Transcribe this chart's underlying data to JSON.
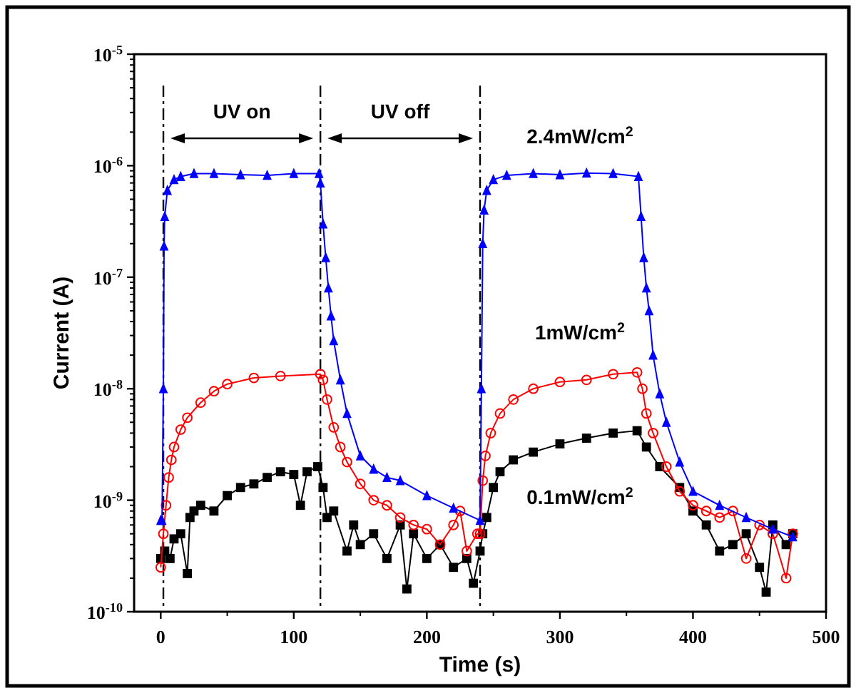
{
  "chart_data": {
    "type": "line",
    "xlabel": "Time (s)",
    "ylabel": "Current (A)",
    "log": "y",
    "xlim": [
      -20,
      500
    ],
    "xticks": [
      0,
      100,
      200,
      300,
      400,
      500
    ],
    "ylim": [
      1e-10,
      1e-05
    ],
    "yticks": [
      {
        "value": 1e-10,
        "label": "10$^{-10}$"
      },
      {
        "value": 1e-09,
        "label": "10$^{-9}$"
      },
      {
        "value": 1e-08,
        "label": "10$^{-8}$"
      },
      {
        "value": 1e-07,
        "label": "10$^{-7}$"
      },
      {
        "value": 1e-06,
        "label": "10$^{-6}$"
      },
      {
        "value": 1e-05,
        "label": "10$^{-5}$"
      }
    ],
    "grid": false,
    "line_style": "solid",
    "ref_lines": [
      {
        "axis": "x",
        "value": 2,
        "line_style": "dashed",
        "color": "#000000"
      },
      {
        "axis": "x",
        "value": 120,
        "line_style": "dashed",
        "color": "#000000"
      },
      {
        "axis": "x",
        "value": 240,
        "line_style": "dashed",
        "color": "#000000"
      }
    ],
    "annotations": [
      "UV on",
      "UV off"
    ],
    "series": [
      {
        "name": "0.1mW/cm$^{2}$",
        "color": "#000000",
        "marker": "square",
        "x": [
          0,
          3,
          7,
          10,
          15,
          20,
          22,
          25,
          30,
          40,
          50,
          60,
          70,
          80,
          90,
          100,
          105,
          110,
          118,
          122,
          125,
          130,
          140,
          145,
          150,
          160,
          170,
          180,
          185,
          190,
          200,
          210,
          220,
          230,
          235,
          240,
          242,
          245,
          250,
          255,
          265,
          280,
          300,
          320,
          340,
          358,
          365,
          375,
          390,
          400,
          410,
          420,
          430,
          440,
          450,
          455,
          460,
          470,
          475
        ],
        "values": [
          3e-10,
          3.5e-10,
          3e-10,
          4.5e-10,
          5e-10,
          2.2e-10,
          7e-10,
          8e-10,
          9e-10,
          8e-10,
          1.1e-09,
          1.3e-09,
          1.4e-09,
          1.6e-09,
          1.8e-09,
          1.7e-09,
          9e-10,
          1.8e-09,
          2e-09,
          1.3e-09,
          7e-10,
          8e-10,
          3.5e-10,
          6e-10,
          4e-10,
          5e-10,
          3e-10,
          6e-10,
          1.6e-10,
          5e-10,
          3e-10,
          4e-10,
          2.5e-10,
          3e-10,
          1.8e-10,
          3.5e-10,
          5e-10,
          7e-10,
          1.3e-09,
          1.8e-09,
          2.3e-09,
          2.7e-09,
          3.2e-09,
          3.6e-09,
          4e-09,
          4.2e-09,
          3e-09,
          2e-09,
          1.3e-09,
          8e-10,
          6e-10,
          3.5e-10,
          4e-10,
          5e-10,
          2.5e-10,
          1.5e-10,
          6e-10,
          4e-10,
          5e-10
        ]
      },
      {
        "name": "1mW/cm$^{2}$",
        "color": "#ff0000",
        "marker": "circle",
        "x": [
          0,
          2,
          4,
          6,
          8,
          10,
          15,
          20,
          30,
          40,
          50,
          70,
          90,
          120,
          122,
          125,
          130,
          135,
          140,
          150,
          160,
          170,
          180,
          190,
          200,
          210,
          220,
          225,
          230,
          238,
          240,
          242,
          244,
          248,
          255,
          265,
          280,
          300,
          320,
          340,
          358,
          362,
          365,
          370,
          380,
          390,
          400,
          410,
          420,
          430,
          440,
          450,
          460,
          470,
          475
        ],
        "values": [
          2.5e-10,
          5e-10,
          9e-10,
          1.6e-09,
          2.3e-09,
          3e-09,
          4.3e-09,
          5.5e-09,
          7.5e-09,
          9.5e-09,
          1.1e-08,
          1.25e-08,
          1.3e-08,
          1.35e-08,
          1.2e-08,
          8e-09,
          4.5e-09,
          3e-09,
          2.2e-09,
          1.4e-09,
          1e-09,
          9e-10,
          7e-10,
          6e-10,
          5.5e-10,
          4e-10,
          6e-10,
          8e-10,
          3.5e-10,
          5e-10,
          5e-10,
          1.5e-09,
          2.5e-09,
          4e-09,
          6e-09,
          8e-09,
          1e-08,
          1.15e-08,
          1.2e-08,
          1.35e-08,
          1.4e-08,
          1e-08,
          6e-09,
          4e-09,
          2e-09,
          1.2e-09,
          9e-10,
          8e-10,
          7e-10,
          8e-10,
          3e-10,
          6e-10,
          5e-10,
          2e-10,
          5e-10
        ]
      },
      {
        "name": "2.4mW/cm$^{2}$",
        "color": "#0000ff",
        "marker": "triangle",
        "x": [
          0,
          1,
          2,
          2.5,
          3,
          5,
          10,
          15,
          25,
          40,
          60,
          80,
          100,
          119,
          120,
          122,
          124,
          126,
          128,
          130,
          135,
          140,
          150,
          160,
          170,
          180,
          200,
          220,
          240,
          241,
          242,
          243,
          245,
          250,
          260,
          280,
          300,
          320,
          340,
          359,
          361,
          363,
          365,
          367,
          370,
          375,
          380,
          390,
          400,
          420,
          440,
          460,
          475
        ],
        "values": [
          6.6e-10,
          6.6e-10,
          1e-08,
          1.9e-07,
          3.5e-07,
          6e-07,
          7.5e-07,
          8e-07,
          8.5e-07,
          8.5e-07,
          8.3e-07,
          8.2e-07,
          8.5e-07,
          8.5e-07,
          7e-07,
          3e-07,
          1.5e-07,
          8e-08,
          4.5e-08,
          2.7e-08,
          1.2e-08,
          6e-09,
          2.5e-09,
          1.9e-09,
          1.6e-09,
          1.5e-09,
          1.1e-09,
          8.5e-10,
          6.6e-10,
          1e-08,
          2e-07,
          4e-07,
          6e-07,
          7.5e-07,
          8.2e-07,
          8.5e-07,
          8.3e-07,
          8.6e-07,
          8.5e-07,
          8e-07,
          3.5e-07,
          1.5e-07,
          8e-08,
          5e-08,
          2e-08,
          9e-09,
          5e-09,
          2.2e-09,
          1.2e-09,
          9e-10,
          7e-10,
          5.5e-10,
          4.7e-10
        ]
      }
    ]
  }
}
